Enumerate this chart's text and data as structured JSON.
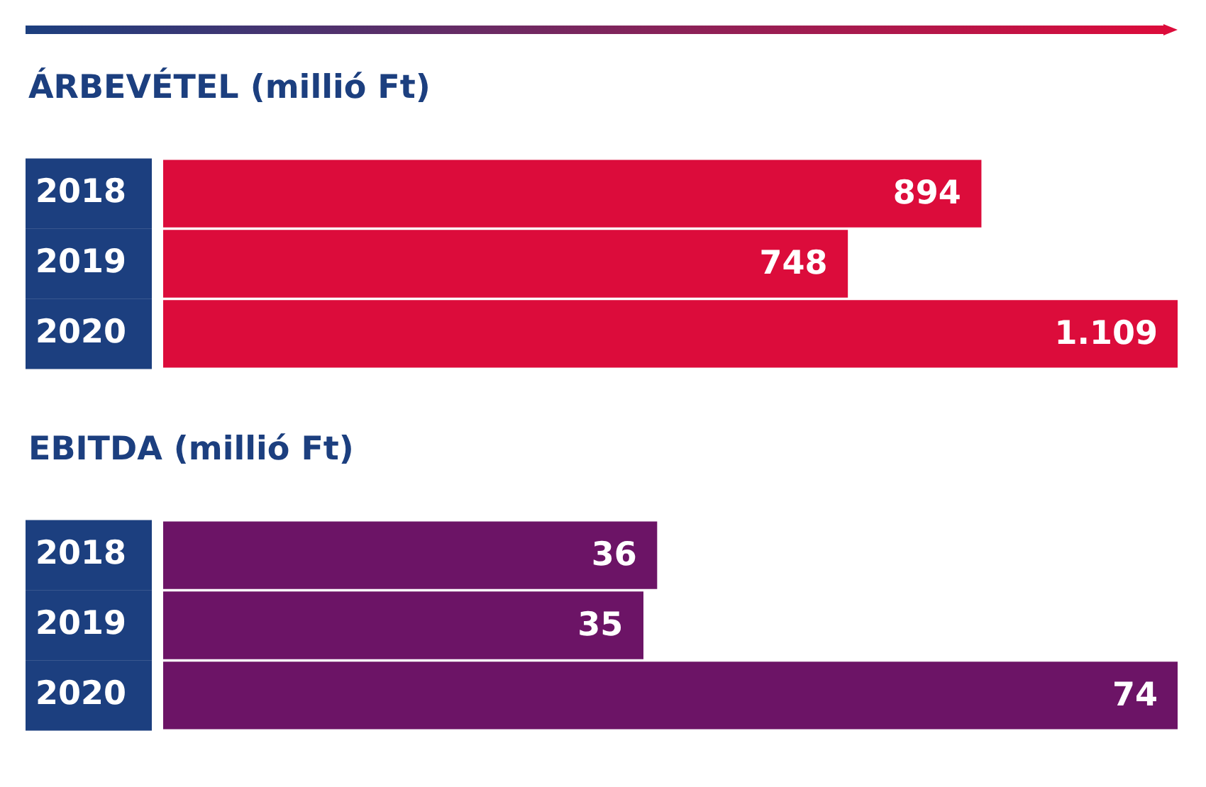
{
  "chart_data": [
    {
      "type": "bar",
      "orientation": "horizontal",
      "title": "ÁRBEVÉTEL (millió Ft)",
      "categories": [
        "2018",
        "2019",
        "2020"
      ],
      "tick_labels": "y",
      "series": [
        {
          "color": "#dc0c3b",
          "values": [
            894,
            748,
            1109
          ],
          "value_labels": [
            "894",
            "748",
            "1.109"
          ]
        }
      ]
    },
    {
      "type": "bar",
      "orientation": "horizontal",
      "title": "EBITDA (millió Ft)",
      "categories": [
        "2018",
        "2019",
        "2020"
      ],
      "tick_labels": "y",
      "series": [
        {
          "color": "#6c1466",
          "values": [
            36,
            35,
            74
          ],
          "value_labels": [
            "36",
            "35",
            "74"
          ]
        }
      ]
    }
  ]
}
